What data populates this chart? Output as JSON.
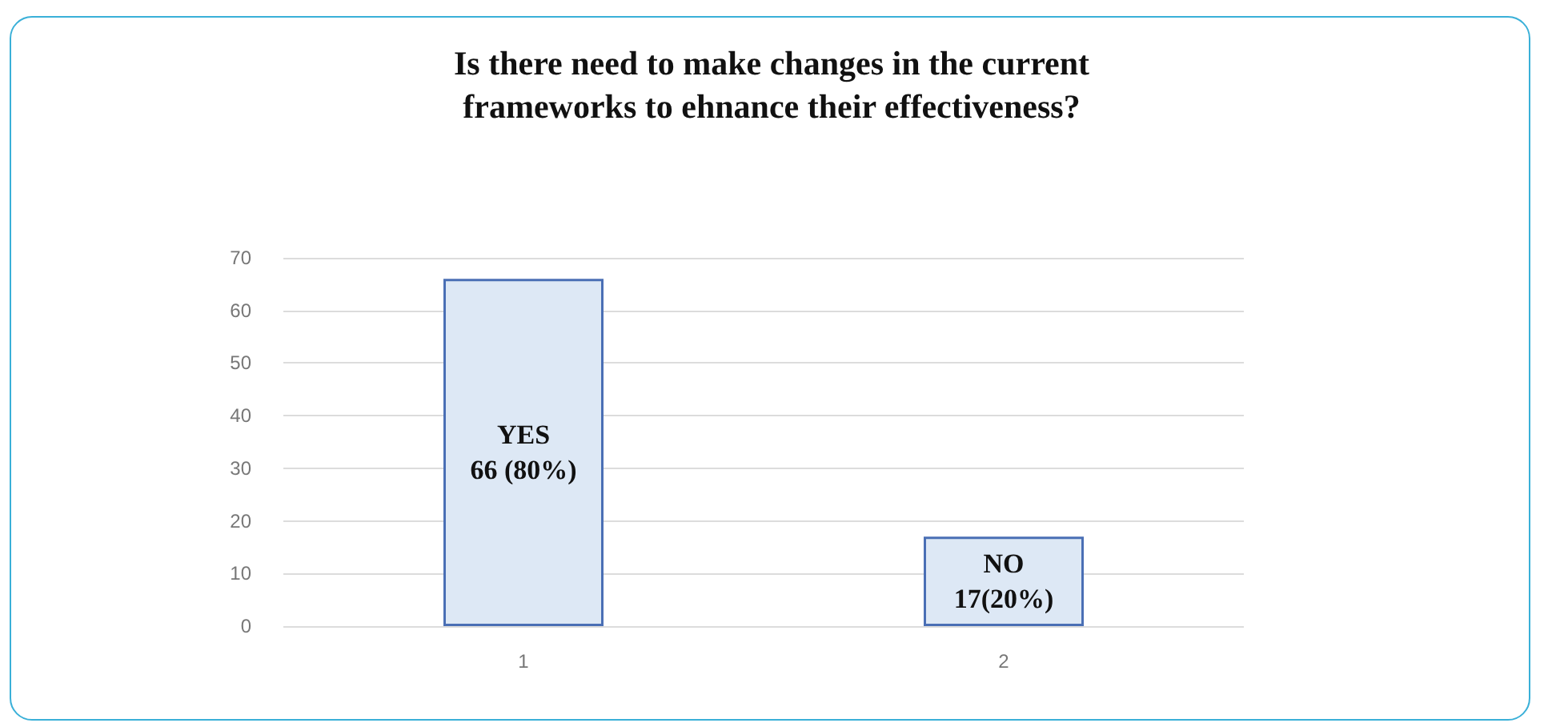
{
  "chart_data": {
    "type": "bar",
    "title": "Is there need to make changes in the current\nframeworks to ehnance their effectiveness?",
    "categories": [
      "1",
      "2"
    ],
    "values": [
      66,
      17
    ],
    "value_labels": [
      "YES\n66 (80%)",
      "NO\n17(20%)"
    ],
    "color": "#dde8f5",
    "ylim": [
      0,
      70
    ],
    "yticks": [
      0,
      10,
      20,
      30,
      40,
      50,
      60,
      70
    ],
    "grid": "y"
  }
}
